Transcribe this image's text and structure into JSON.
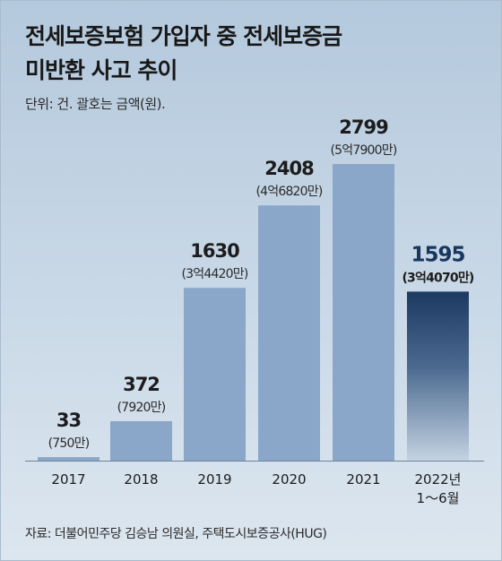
{
  "chart_data": {
    "type": "bar",
    "title": [
      "전세보증보험 가입자 중 전세보증금",
      "미반환 사고 추이"
    ],
    "unit_note": "단위: 건. 괄호는 금액(원).",
    "source": "자료: 더불어민주당 김승남 의원실, 주택도시보증공사(HUG)",
    "categories": [
      "2017",
      "2018",
      "2019",
      "2020",
      "2021",
      [
        "2022년",
        "1～6월"
      ]
    ],
    "values": [
      33,
      372,
      1630,
      2408,
      2799,
      1595
    ],
    "value_labels": [
      "33",
      "372",
      "1630",
      "2408",
      "2799",
      "1595"
    ],
    "amount_labels": [
      "(750만)",
      "(7920만)",
      "(3억4420만)",
      "(4억6820만)",
      "(5억7900만)",
      "(3억4070만)"
    ],
    "highlight_index": 5,
    "ylim": [
      0,
      2799
    ],
    "colors": {
      "bar": "#8aa6c9",
      "highlight_top": "#1c3a61",
      "highlight_bottom": "#c4d3e2",
      "axis": "#6f8398"
    }
  }
}
